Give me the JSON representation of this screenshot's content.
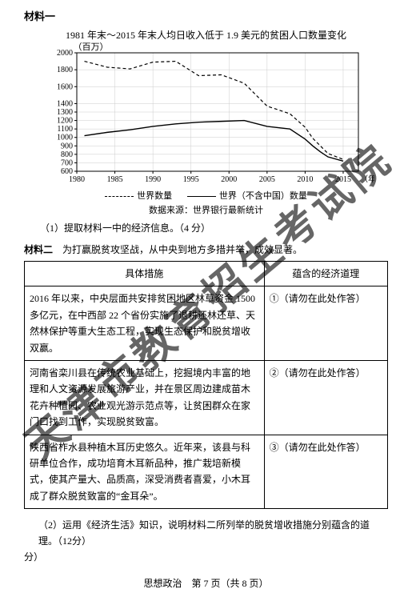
{
  "material1": {
    "label": "材料一",
    "chart": {
      "title": "1981 年末～2015 年末人均日收入低于 1.9 美元的贫困人口数量变化",
      "unit_label": "（百万）",
      "type": "line",
      "x_axis_label": "（年）",
      "xlim": [
        1980,
        2017
      ],
      "ylim": [
        600,
        2000
      ],
      "x_ticks": [
        1980,
        1985,
        1990,
        1995,
        2000,
        2005,
        2010,
        2015
      ],
      "y_ticks": [
        600,
        700,
        800,
        900,
        1000,
        1100,
        1200,
        1300,
        1400,
        1600,
        1800,
        2000
      ],
      "grid_color": "#cccccc",
      "background_color": "#ffffff",
      "axis_color": "#000000",
      "label_fontsize": 10,
      "series": [
        {
          "name": "世界数量",
          "style": "dashed",
          "color": "#000000",
          "line_width": 1.2,
          "points": [
            {
              "x": 1981,
              "y": 1900
            },
            {
              "x": 1984,
              "y": 1830
            },
            {
              "x": 1987,
              "y": 1810
            },
            {
              "x": 1990,
              "y": 1890
            },
            {
              "x": 1993,
              "y": 1900
            },
            {
              "x": 1996,
              "y": 1730
            },
            {
              "x": 1999,
              "y": 1740
            },
            {
              "x": 2002,
              "y": 1640
            },
            {
              "x": 2005,
              "y": 1370
            },
            {
              "x": 2008,
              "y": 1280
            },
            {
              "x": 2010,
              "y": 1120
            },
            {
              "x": 2011,
              "y": 990
            },
            {
              "x": 2012,
              "y": 900
            },
            {
              "x": 2013,
              "y": 810
            },
            {
              "x": 2015,
              "y": 740
            }
          ]
        },
        {
          "name": "世界（不含中国）数量",
          "style": "solid",
          "color": "#000000",
          "line_width": 1.4,
          "points": [
            {
              "x": 1981,
              "y": 1020
            },
            {
              "x": 1984,
              "y": 1060
            },
            {
              "x": 1987,
              "y": 1090
            },
            {
              "x": 1990,
              "y": 1130
            },
            {
              "x": 1993,
              "y": 1160
            },
            {
              "x": 1996,
              "y": 1180
            },
            {
              "x": 1999,
              "y": 1190
            },
            {
              "x": 2002,
              "y": 1200
            },
            {
              "x": 2005,
              "y": 1130
            },
            {
              "x": 2008,
              "y": 1100
            },
            {
              "x": 2010,
              "y": 980
            },
            {
              "x": 2011,
              "y": 900
            },
            {
              "x": 2012,
              "y": 830
            },
            {
              "x": 2013,
              "y": 770
            },
            {
              "x": 2015,
              "y": 720
            }
          ]
        }
      ],
      "legend": {
        "items": [
          "世界数量",
          "世界（不含中国）数量"
        ]
      },
      "source": "数据来源：世界银行最新统计"
    },
    "question1": "（1）提取材料一中的经济信息。（4 分）"
  },
  "material2": {
    "label": "材料二",
    "intro": "为打赢脱贫攻坚战，从中央到地方多措并举，成效显著。",
    "table": {
      "columns": [
        "具体措施",
        "蕴含的经济道理"
      ],
      "rows": [
        {
          "measure": "2016 年以来，中央层面共安排贫困地区林草资金 1500 多亿元，在中西部 22 个省份实施了退耕还林还草、天然林保护等重大生态工程，实现生态保护和脱贫增收双赢。",
          "answer": "①（请勿在此处作答）"
        },
        {
          "measure": "河南省栾川县在传统农业基础上，挖掘境内丰富的地理和人文资源发展旅游产业，并在景区周边建成苗木花卉种植园、农业观光游示范点等，让贫困群众在家门口找到工作，实现脱贫致富。",
          "answer": "②（请勿在此处作答）"
        },
        {
          "measure": "陕西省柞水县种植木耳历史悠久。近年来，该县与科研单位合作，成功培育木耳新品种，推广栽培新模式，使其产量大、品质高，深受消费者喜爱，小木耳成了群众脱贫致富的“金耳朵”。",
          "answer": "③（请勿在此处作答）"
        }
      ]
    },
    "question2": "（2）运用《经济生活》知识，说明材料二所列举的脱贫增收措施分别蕴含的道理。（12分）",
    "question2_points_line": "分）"
  },
  "footer": "思想政治　第 7 页（共 8 页）",
  "watermark": "天津市教育招生考试院"
}
